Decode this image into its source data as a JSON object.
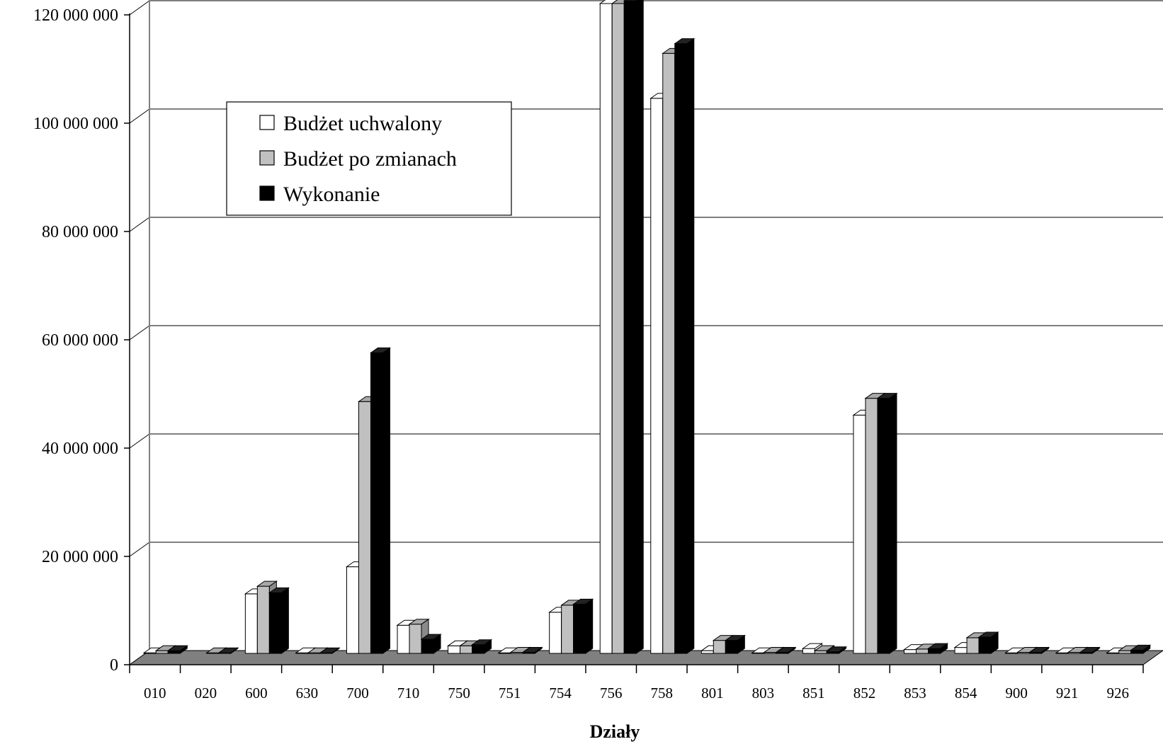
{
  "chart_data": {
    "type": "bar",
    "xlabel": "Działy",
    "ylabel": "",
    "ylim": [
      0,
      120000000
    ],
    "yticks": [
      0,
      20000000,
      40000000,
      60000000,
      80000000,
      100000000,
      120000000
    ],
    "ytick_labels": [
      "0",
      "20 000 000",
      "40 000 000",
      "60 000 000",
      "80 000 000",
      "100 000 000",
      "120 000 000"
    ],
    "grid": true,
    "legend_position": "top-left",
    "categories": [
      "010",
      "020",
      "600",
      "630",
      "700",
      "710",
      "750",
      "751",
      "754",
      "756",
      "758",
      "801",
      "803",
      "851",
      "852",
      "853",
      "854",
      "900",
      "921",
      "926"
    ],
    "series": [
      {
        "name": "Budżet uchwalony",
        "color": "#ffffff",
        "values": [
          100000,
          0,
          11000000,
          100000,
          16000000,
          5200000,
          1400000,
          100000,
          7600000,
          120000000,
          102500000,
          500000,
          100000,
          900000,
          44000000,
          700000,
          1100000,
          100000,
          100000,
          100000
        ]
      },
      {
        "name": "Budżet po zmianach",
        "color": "#c0c0c0",
        "values": [
          500000,
          100000,
          12400000,
          100000,
          46500000,
          5400000,
          1400000,
          200000,
          8900000,
          120000000,
          110800000,
          2400000,
          200000,
          500000,
          47100000,
          800000,
          2900000,
          200000,
          200000,
          500000
        ]
      },
      {
        "name": "Wykonanie",
        "color": "#000000",
        "values": [
          500000,
          100000,
          11200000,
          100000,
          55500000,
          2600000,
          1600000,
          200000,
          9100000,
          120500000,
          112600000,
          2400000,
          200000,
          300000,
          47100000,
          900000,
          3000000,
          200000,
          200000,
          600000
        ]
      }
    ]
  }
}
